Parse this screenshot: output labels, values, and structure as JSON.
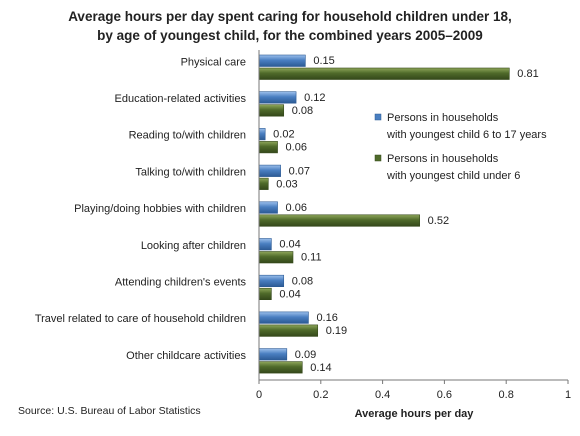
{
  "chart_data": {
    "type": "bar",
    "orientation": "horizontal",
    "title_lines": [
      "Average hours per day spent caring for household children under 18,",
      "by age of youngest child,  for the combined years 2005–2009"
    ],
    "categories": [
      "Physical care",
      "Education-related activities",
      "Reading to/with  children",
      "Talking to/with  children",
      "Playing/doing hobbies with children",
      "Looking after children",
      "Attending children's events",
      "Travel related to care of household children",
      "Other childcare activities"
    ],
    "series": [
      {
        "name_lines": [
          "Persons in households",
          "with youngest child 6 to 17 years"
        ],
        "values": [
          0.15,
          0.12,
          0.02,
          0.07,
          0.06,
          0.04,
          0.08,
          0.16,
          0.09
        ],
        "labels": [
          "0.15",
          "0.12",
          "0.02",
          "0.07",
          "0.06",
          "0.04",
          "0.08",
          "0.16",
          "0.09"
        ],
        "color": "#4a7fc1",
        "color_light": "#9cc0ec",
        "color_dark": "#2c5a94"
      },
      {
        "name_lines": [
          "Persons in households",
          "with youngest child under 6"
        ],
        "values": [
          0.81,
          0.08,
          0.06,
          0.03,
          0.52,
          0.11,
          0.04,
          0.19,
          0.14
        ],
        "labels": [
          "0.81",
          "0.08",
          "0.06",
          "0.03",
          "0.52",
          "0.11",
          "0.04",
          "0.19",
          "0.14"
        ],
        "color": "#4f6a2a",
        "color_light": "#8ea65a",
        "color_dark": "#34481a"
      }
    ],
    "xlabel": "Average hours per day",
    "xlim": [
      0,
      1
    ],
    "xticks": [
      0,
      0.2,
      0.4,
      0.6,
      0.8,
      1
    ],
    "xtick_labels": [
      "0",
      "0.2",
      "0.4",
      "0.6",
      "0.8",
      "1"
    ],
    "grid": false,
    "legend_position": "right",
    "source": "Source: U.S. Bureau of Labor Statistics"
  }
}
